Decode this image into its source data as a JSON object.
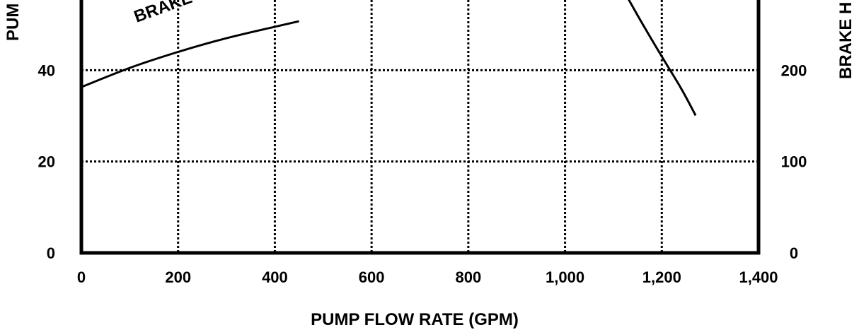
{
  "chart_data": {
    "type": "line",
    "xlabel": "PUMP FLOW RATE (GPM)",
    "ylabel_left": "PUM",
    "ylabel_right": "BRAKE H",
    "xlim": [
      0,
      1400
    ],
    "ylim_left": [
      0,
      60
    ],
    "ylim_right": [
      0,
      300
    ],
    "x_ticks": [
      0,
      200,
      400,
      600,
      800,
      1000,
      1200,
      1400
    ],
    "x_tick_labels": [
      "0",
      "200",
      "400",
      "600",
      "800",
      "1,000",
      "1,200",
      "1,400"
    ],
    "y_ticks_left": [
      0,
      20,
      40
    ],
    "y_tick_labels_left": [
      "0",
      "20",
      "40"
    ],
    "y_ticks_right": [
      0,
      100,
      200
    ],
    "y_tick_labels_right": [
      "0",
      "100",
      "200"
    ],
    "grid": true,
    "series": [
      {
        "name": "BRAKE H",
        "x": [
          0,
          100,
          200,
          300,
          400,
          450
        ],
        "y": [
          36.3,
          40.5,
          44.0,
          47.0,
          49.5,
          50.7
        ]
      },
      {
        "name": "",
        "x": [
          1100,
          1150,
          1200,
          1240,
          1270
        ],
        "y": [
          61.5,
          52.0,
          43.0,
          36.0,
          30.1
        ]
      }
    ],
    "curve_label": "BRAKE H"
  }
}
